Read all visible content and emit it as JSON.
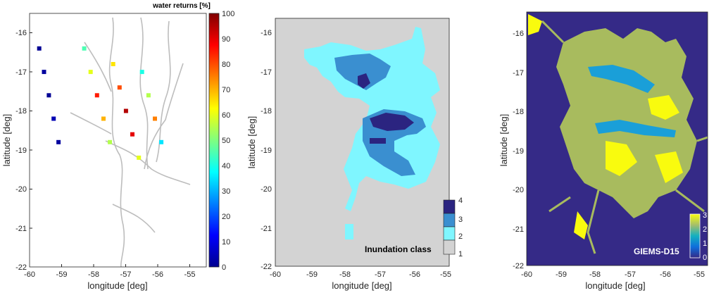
{
  "chart_data": [
    {
      "type": "scatter",
      "xlabel": "longitude [deg]",
      "ylabel": "latitude [deg]",
      "xlim": [
        -60,
        -54.5
      ],
      "ylim": [
        -22,
        -15.5
      ],
      "xticks": [
        "-60",
        "-59",
        "-58",
        "-57",
        "-56",
        "-55"
      ],
      "yticks": [
        "-16",
        "-17",
        "-18",
        "-19",
        "-20",
        "-21",
        "-22"
      ],
      "grid": true,
      "colorbar": {
        "title": "water returns [%]",
        "ticks": [
          "0",
          "10",
          "20",
          "30",
          "40",
          "50",
          "60",
          "70",
          "80",
          "90",
          "100"
        ],
        "range": [
          0,
          100
        ],
        "colormap": "jet"
      },
      "series": [
        {
          "x": [
            -59.7,
            -59.55,
            -59.4,
            -59.25,
            -59.1
          ],
          "y": [
            -16.4,
            -17.0,
            -17.6,
            -18.2,
            -18.8
          ],
          "values": [
            2,
            3,
            2,
            5,
            3
          ]
        },
        {
          "x": [
            -58.3,
            -58.1,
            -57.9,
            -57.7,
            -57.5
          ],
          "y": [
            -16.4,
            -17.0,
            -17.6,
            -18.2,
            -18.8
          ],
          "values": [
            45,
            60,
            85,
            70,
            55
          ]
        },
        {
          "x": [
            -57.4,
            -57.2,
            -57.0,
            -56.8,
            -56.6
          ],
          "y": [
            -16.8,
            -17.4,
            -18.0,
            -18.6,
            -19.2
          ],
          "values": [
            65,
            80,
            95,
            90,
            60
          ]
        },
        {
          "x": [
            -56.5,
            -56.3,
            -56.1,
            -55.9
          ],
          "y": [
            -17.0,
            -17.6,
            -18.2,
            -18.8
          ],
          "values": [
            40,
            55,
            75,
            35
          ]
        }
      ]
    },
    {
      "type": "heatmap",
      "xlabel": "longitude [deg]",
      "ylabel": "latitude [deg]",
      "xlim": [
        -60,
        -54.5
      ],
      "ylim": [
        -22,
        -15.5
      ],
      "xticks": [
        "-60",
        "-59",
        "-58",
        "-57",
        "-56",
        "-55"
      ],
      "yticks": [
        "-16",
        "-17",
        "-18",
        "-19",
        "-20",
        "-21",
        "-22"
      ],
      "legend": {
        "title": "Inundation class",
        "labels": [
          "4",
          "3",
          "2",
          "1"
        ],
        "placement": "bottom-right"
      },
      "classes": [
        {
          "label": "1",
          "color": "#d3d3d3"
        },
        {
          "label": "2",
          "color": "#7ff6ff"
        },
        {
          "label": "3",
          "color": "#3a8fd0"
        },
        {
          "label": "4",
          "color": "#2b2480"
        }
      ]
    },
    {
      "type": "heatmap",
      "xlabel": "longitude [deg]",
      "ylabel": "latitude [deg]",
      "xlim": [
        -60,
        -54.5
      ],
      "ylim": [
        -22,
        -15.5
      ],
      "xticks": [
        "-60",
        "-59",
        "-58",
        "-57",
        "-56",
        "-55"
      ],
      "yticks": [
        "-16",
        "-17",
        "-18",
        "-19",
        "-20",
        "-21",
        "-22"
      ],
      "legend": {
        "title": "GIEMS-D15",
        "labels": [
          "3",
          "2",
          "1",
          "0"
        ],
        "placement": "bottom-right"
      },
      "colormap": "parula",
      "range": [
        0,
        3
      ]
    }
  ]
}
